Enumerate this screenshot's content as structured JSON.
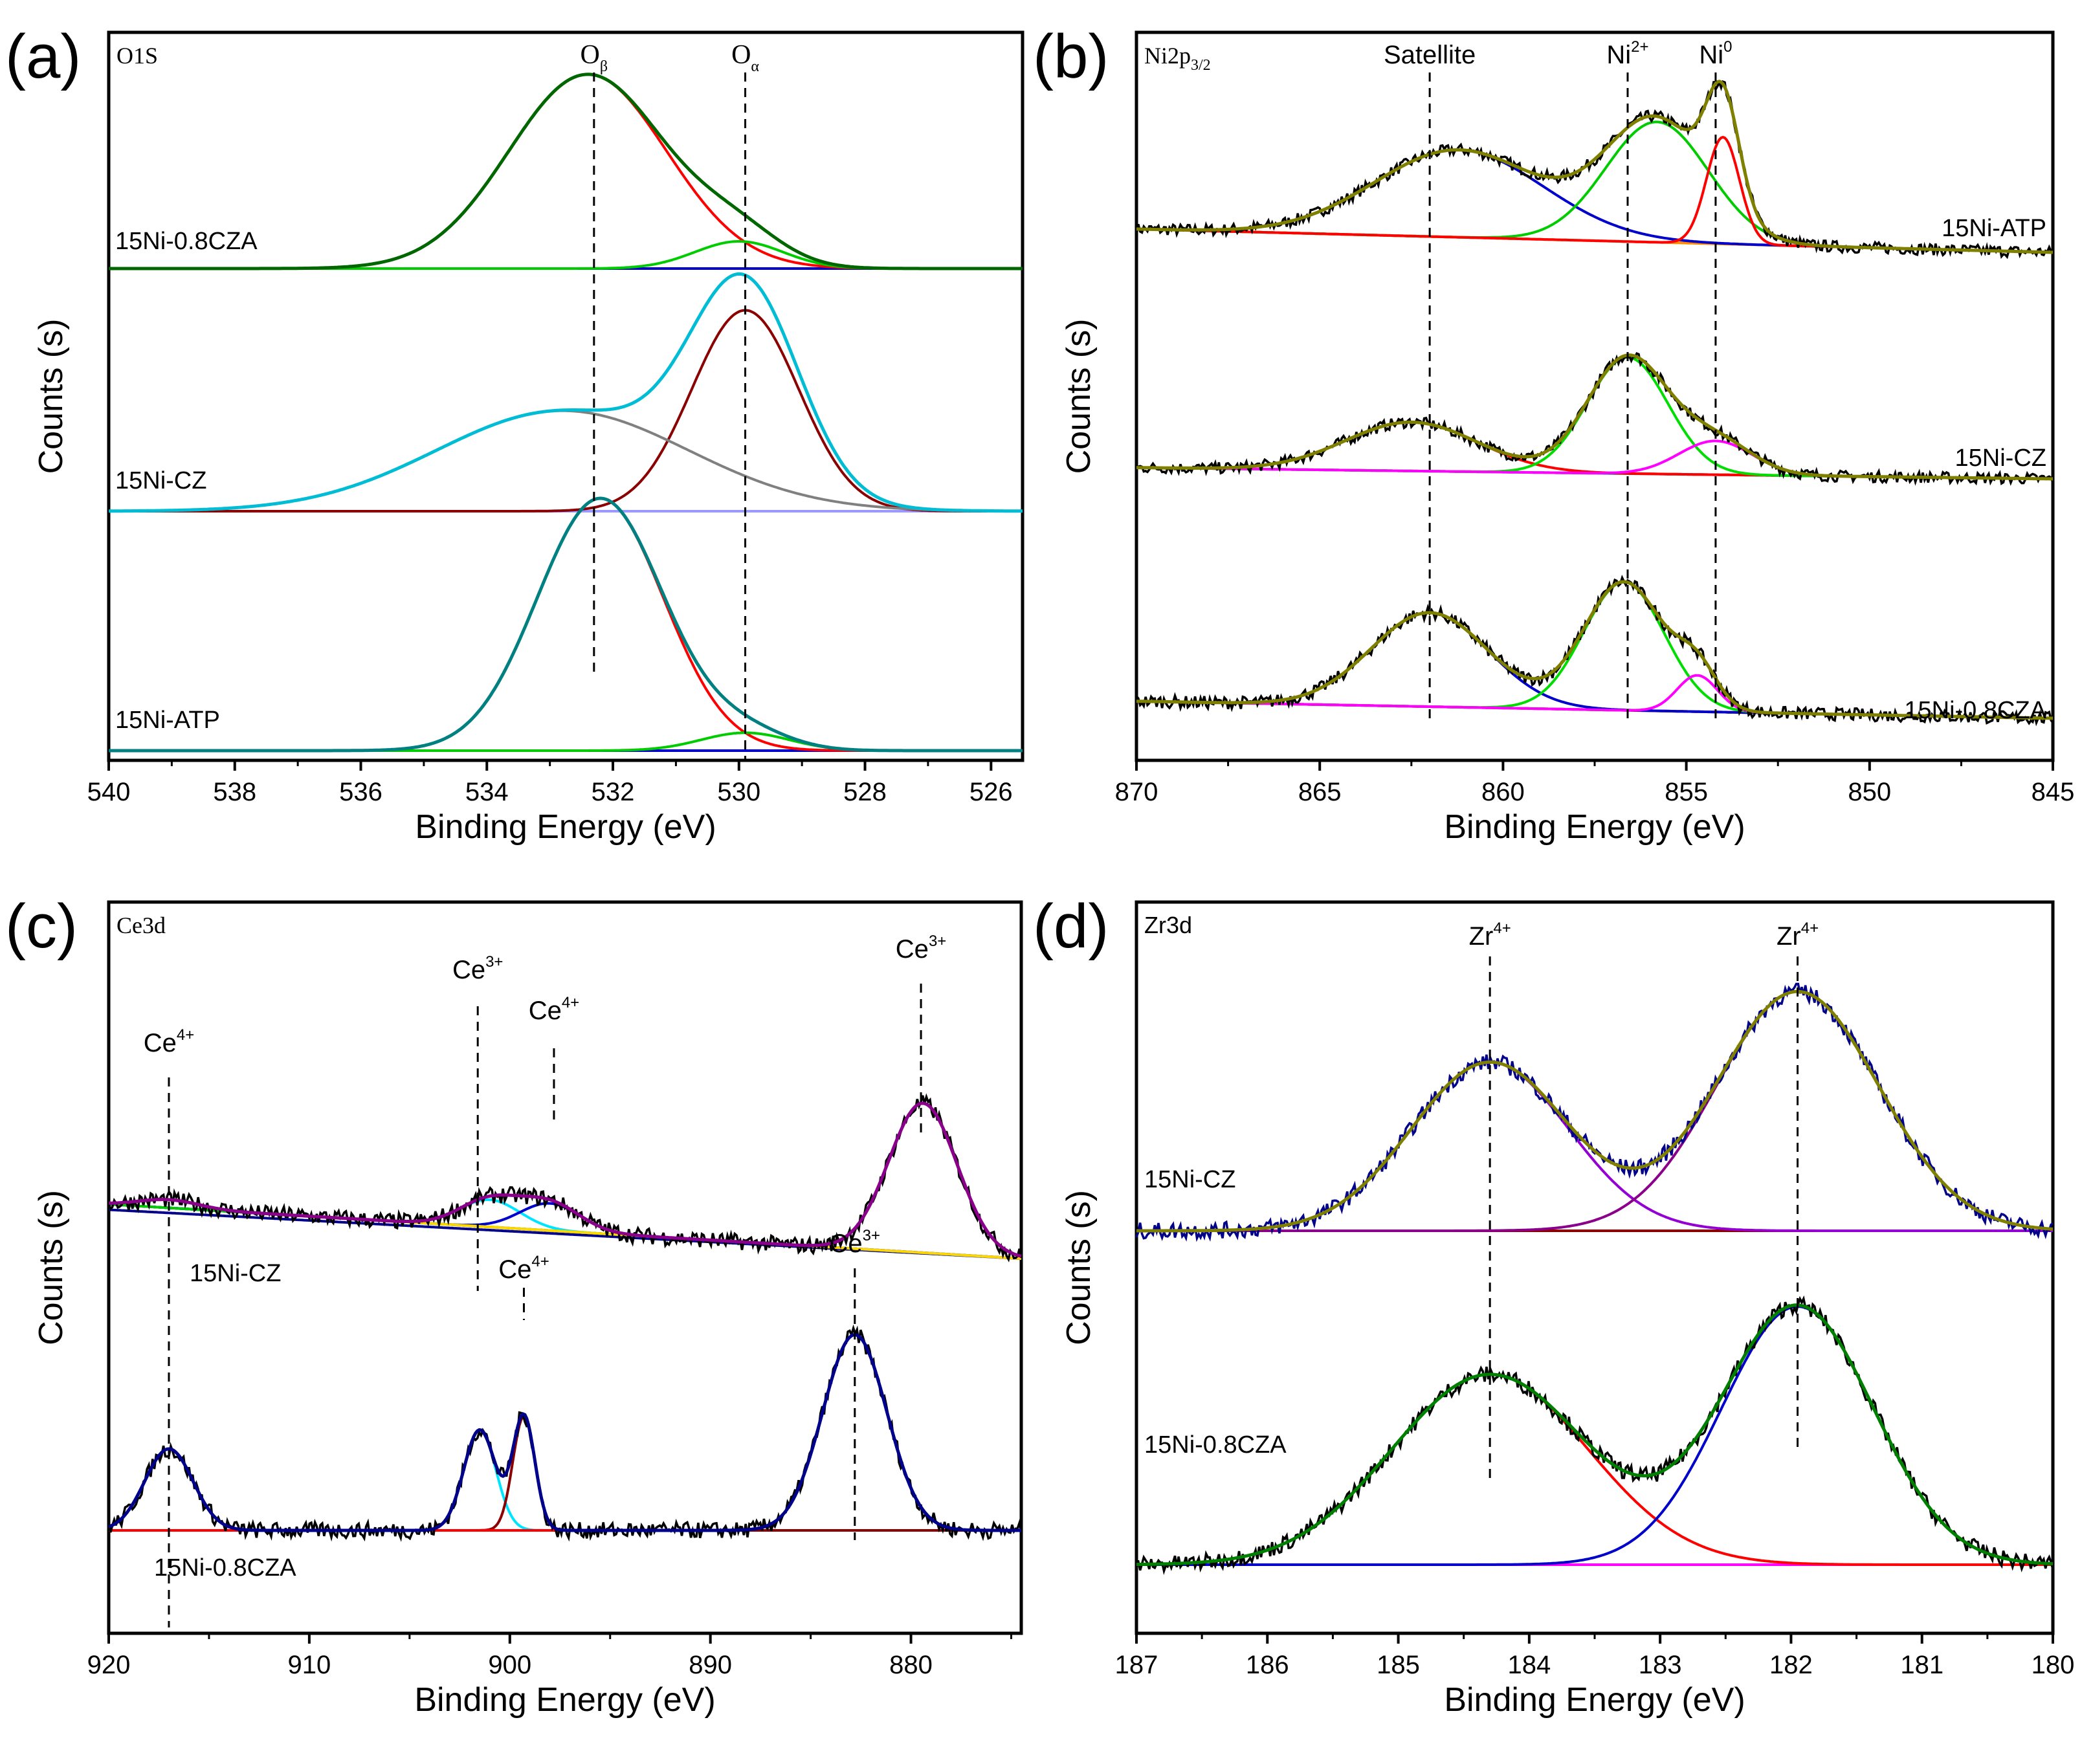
{
  "figure": {
    "panels": [
      {
        "letter": "(a)",
        "element": "O1S",
        "xlabel": "Binding Energy (eV)",
        "ylabel": "Counts (s)"
      },
      {
        "letter": "(b)",
        "element": "Ni2p3/2",
        "xlabel": "Binding Energy (eV)",
        "ylabel": "Counts (s)"
      },
      {
        "letter": "(c)",
        "element": "Ce3d",
        "xlabel": "Binding Energy (eV)",
        "ylabel": "Counts (s)"
      },
      {
        "letter": "(d)",
        "element": "Zr3d",
        "xlabel": "Binding Energy (eV)",
        "ylabel": "Counts (s)"
      }
    ]
  },
  "chart_data": [
    {
      "type": "line",
      "panel": "(a)",
      "title": "O1S",
      "xlabel": "Binding Energy (eV)",
      "ylabel": "Counts (s)",
      "xlim": [
        540,
        525.5
      ],
      "x_reversed": true,
      "xticks": [
        "540",
        "538",
        "536",
        "534",
        "532",
        "530",
        "528",
        "526"
      ],
      "yticks": [],
      "peak_markers": [
        {
          "label": "O",
          "sub": "β",
          "x": 532.3
        },
        {
          "label": "O",
          "sub": "α",
          "x": 529.9
        }
      ],
      "series": [
        {
          "name": "15Ni-0.8CZA",
          "offset": 2.0,
          "components": [
            {
              "role": "envelope",
              "color": "#006600",
              "center": 532.4,
              "height": 1.02,
              "width": 1.25,
              "tail": 530.1,
              "tail_height": 0.14,
              "tail_width": 0.7
            },
            {
              "role": "O-beta",
              "color": "#ff0000",
              "center": 532.4,
              "height": 1.0,
              "width": 1.25
            },
            {
              "role": "O-alpha",
              "color": "#00cc00",
              "center": 530.0,
              "height": 0.14,
              "width": 0.7
            },
            {
              "role": "baseline",
              "color": "#0000cc",
              "flat": 0.0
            }
          ]
        },
        {
          "name": "15Ni-CZ",
          "offset": 1.0,
          "components": [
            {
              "role": "envelope",
              "color": "#00bcd4",
              "center": 530.0,
              "height": 1.14,
              "width": 0.85,
              "tail": 532.8,
              "tail_height": 0.42,
              "tail_width": 2.0
            },
            {
              "role": "O-alpha",
              "color": "#8b0000",
              "center": 529.9,
              "height": 0.9,
              "width": 0.85
            },
            {
              "role": "O-beta",
              "color": "#808080",
              "center": 532.8,
              "height": 0.45,
              "width": 2.0
            },
            {
              "role": "baseline",
              "color": "#9999ff",
              "flat": 0.0
            }
          ]
        },
        {
          "name": "15Ni-ATP",
          "offset": 0.0,
          "components": [
            {
              "role": "envelope",
              "color": "#008080",
              "center": 532.2,
              "height": 1.15,
              "width": 1.0,
              "tail": 529.9,
              "tail_height": 0.08,
              "tail_width": 0.7
            },
            {
              "role": "O-beta",
              "color": "#ff0000",
              "center": 532.2,
              "height": 1.13,
              "width": 1.0
            },
            {
              "role": "O-alpha",
              "color": "#00cc00",
              "center": 529.9,
              "height": 0.08,
              "width": 0.7
            },
            {
              "role": "baseline",
              "color": "#0000cc",
              "flat": 0.0
            }
          ]
        }
      ]
    },
    {
      "type": "line",
      "panel": "(b)",
      "title": "Ni2p3/2",
      "xlabel": "Binding Energy (eV)",
      "ylabel": "Counts (s)",
      "xlim": [
        870,
        845
      ],
      "x_reversed": true,
      "xticks": [
        "870",
        "865",
        "860",
        "855",
        "850",
        "845"
      ],
      "yticks": [],
      "peak_markers": [
        {
          "label": "Satellite",
          "x": 862.0
        },
        {
          "label": "Ni",
          "sup": "2+",
          "x": 856.6
        },
        {
          "label": "Ni",
          "sup": "0",
          "x": 854.2
        }
      ],
      "series": [
        {
          "name": "15Ni-ATP",
          "offset": 2.0,
          "components": [
            {
              "role": "envelope",
              "color": "#808000"
            },
            {
              "role": "data",
              "color": "#000000"
            },
            {
              "role": "satellite",
              "color": "#0000cc",
              "center": 861.2,
              "height": 0.45,
              "width": 2.3
            },
            {
              "role": "Ni2+",
              "color": "#00cc00",
              "center": 855.8,
              "height": 0.62,
              "width": 1.4
            },
            {
              "role": "Ni0",
              "color": "#ff0000",
              "center": 854.0,
              "height": 0.55,
              "width": 0.45
            },
            {
              "role": "baseline",
              "color": "#ff8c00",
              "slope": 0.12
            }
          ]
        },
        {
          "name": "15Ni-CZ",
          "offset": 1.0,
          "components": [
            {
              "role": "envelope",
              "color": "#808000"
            },
            {
              "role": "data",
              "color": "#000000"
            },
            {
              "role": "satellite",
              "color": "#ff0000",
              "center": 862.5,
              "height": 0.26,
              "width": 1.8
            },
            {
              "role": "Ni2+",
              "color": "#00dd00",
              "center": 856.6,
              "height": 0.62,
              "width": 1.1
            },
            {
              "role": "Ni0",
              "color": "#ff00ff",
              "center": 854.2,
              "height": 0.18,
              "width": 1.0
            },
            {
              "role": "baseline",
              "color": "#008080",
              "slope": 0.06
            }
          ]
        },
        {
          "name": "15Ni-0.8CZA",
          "offset": 0.0,
          "components": [
            {
              "role": "envelope",
              "color": "#808000"
            },
            {
              "role": "data",
              "color": "#000000"
            },
            {
              "role": "satellite",
              "color": "#0000cc",
              "center": 862.0,
              "height": 0.44,
              "width": 1.6
            },
            {
              "role": "Ni2+",
              "color": "#00dd00",
              "center": 856.7,
              "height": 0.6,
              "width": 1.1
            },
            {
              "role": "Ni0",
              "color": "#ff00ff",
              "center": 854.7,
              "height": 0.17,
              "width": 0.55
            },
            {
              "role": "baseline",
              "color": "#8b0000",
              "slope": 0.08
            }
          ]
        }
      ]
    },
    {
      "type": "line",
      "panel": "(c)",
      "title": "Ce3d",
      "xlabel": "Binding Energy (eV)",
      "ylabel": "Counts (s)",
      "xlim": [
        920,
        874.5
      ],
      "x_reversed": true,
      "xticks": [
        "920",
        "910",
        "900",
        "890",
        "880"
      ],
      "yticks": [],
      "peak_markers": [
        {
          "label": "Ce",
          "sup": "4+",
          "x": 917.0,
          "row": "upper"
        },
        {
          "label": "Ce",
          "sup": "3+",
          "x": 901.6,
          "row": "upper"
        },
        {
          "label": "Ce",
          "sup": "4+",
          "x": 897.8,
          "row": "upper"
        },
        {
          "label": "Ce",
          "sup": "3+",
          "x": 879.5,
          "row": "upper"
        },
        {
          "label": "Ce",
          "sup": "4+",
          "x": 899.3,
          "row": "lower"
        },
        {
          "label": "Ce",
          "sup": "3+",
          "x": 882.8,
          "row": "lower"
        }
      ],
      "series": [
        {
          "name": "15Ni-CZ",
          "offset": 1.0,
          "components": [
            {
              "role": "envelope",
              "color": "#8b008b"
            },
            {
              "role": "data",
              "color": "#000000"
            },
            {
              "role": "u-peak",
              "color": "#00e5ff",
              "center": 901.0,
              "height": 0.1,
              "width": 1.5
            },
            {
              "role": "v-peak",
              "color": "#0000cc",
              "center": 898.0,
              "height": 0.1,
              "width": 1.5
            },
            {
              "role": "Ce3+",
              "color": "#00cc00",
              "center": 879.4,
              "height": 0.55,
              "width": 1.7
            },
            {
              "role": "tail",
              "color": "#ffd700",
              "center": 917.0,
              "height": 0.03,
              "width": 1.5
            },
            {
              "role": "baseline",
              "color": "#ff0000",
              "slope": 0.2
            },
            {
              "role": "baseline-2",
              "color": "#00008b",
              "slope": 0.18
            }
          ]
        },
        {
          "name": "15Ni-0.8CZA",
          "offset": 0.0,
          "components": [
            {
              "role": "envelope",
              "color": "#00008b"
            },
            {
              "role": "data",
              "color": "#000000"
            },
            {
              "role": "Ce4+ u",
              "color": "#ffd700",
              "center": 917.0,
              "height": 0.3,
              "width": 1.2
            },
            {
              "role": "Ce3+",
              "color": "#00e5ff",
              "center": 901.5,
              "height": 0.37,
              "width": 0.8
            },
            {
              "role": "Ce4+",
              "color": "#8b0000",
              "center": 899.3,
              "height": 0.42,
              "width": 0.55
            },
            {
              "role": "Ce3+ v",
              "color": "#ff0000",
              "center": 882.8,
              "height": 0.72,
              "width": 1.6
            },
            {
              "role": "baseline",
              "color": "#008080",
              "slope": 0.0
            }
          ]
        }
      ]
    },
    {
      "type": "line",
      "panel": "(d)",
      "title": "Zr3d",
      "xlabel": "Binding Energy (eV)",
      "ylabel": "Counts (s)",
      "xlim": [
        187,
        180
      ],
      "x_reversed": true,
      "xticks": [
        "187",
        "186",
        "185",
        "184",
        "183",
        "182",
        "181",
        "180"
      ],
      "yticks": [],
      "peak_markers": [
        {
          "label": "Zr",
          "sup": "4+",
          "x": 184.3
        },
        {
          "label": "Zr",
          "sup": "4+",
          "x": 181.95
        }
      ],
      "series": [
        {
          "name": "15Ni-CZ",
          "offset": 1.0,
          "components": [
            {
              "role": "envelope",
              "color": "#808000"
            },
            {
              "role": "data",
              "color": "#00008b"
            },
            {
              "role": "Zr 3d3/2",
              "color": "#9400d3",
              "center": 184.3,
              "height": 0.62,
              "width": 0.6
            },
            {
              "role": "Zr 3d5/2",
              "color": "#8b008b",
              "center": 181.95,
              "height": 0.88,
              "width": 0.62
            },
            {
              "role": "baseline",
              "color": "#8b0000",
              "slope": 0.0
            }
          ]
        },
        {
          "name": "15Ni-0.8CZA",
          "offset": 0.0,
          "components": [
            {
              "role": "envelope",
              "color": "#008000"
            },
            {
              "role": "data",
              "color": "#000000"
            },
            {
              "role": "Zr 3d3/2",
              "color": "#ff0000",
              "center": 184.3,
              "height": 0.7,
              "width": 0.75
            },
            {
              "role": "Zr 3d5/2",
              "color": "#0000cc",
              "center": 181.95,
              "height": 0.95,
              "width": 0.58
            },
            {
              "role": "baseline",
              "color": "#ff00ff",
              "slope": 0.0
            }
          ]
        }
      ]
    }
  ]
}
